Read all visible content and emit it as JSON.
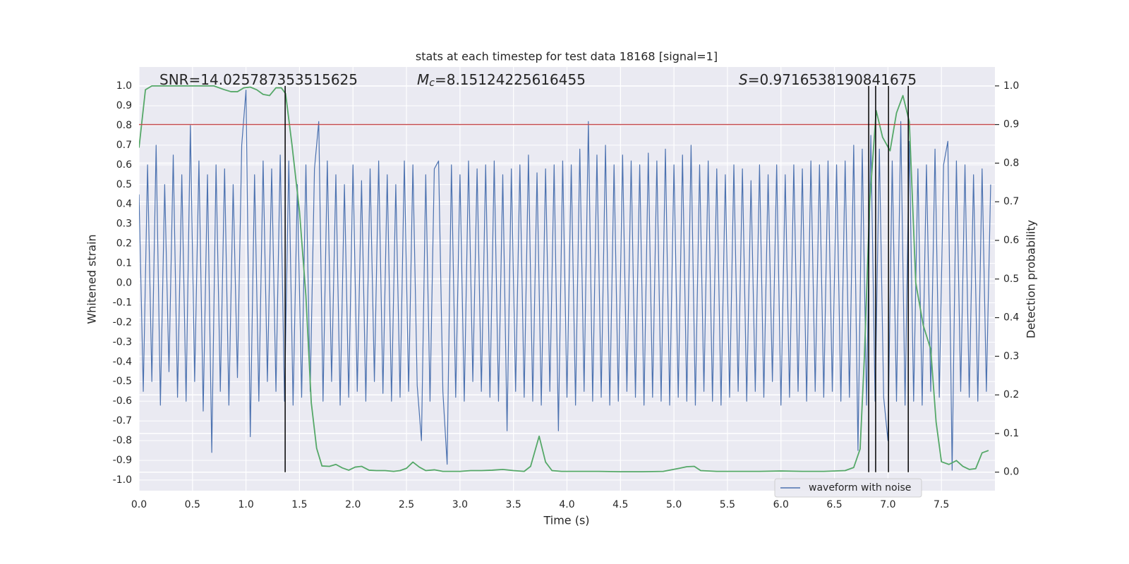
{
  "chart_data": {
    "type": "line",
    "title": "stats at each timestep for test data 18168 [signal=1]",
    "xlabel": "Time (s)",
    "ylabel": "Whitened strain",
    "y2label": "Detection probability",
    "annotations": [
      {
        "text": "SNR=14.025787353515625"
      },
      {
        "symbol": "M",
        "subscript": "c",
        "text": "=8.15124225616455"
      },
      {
        "symbol": "S",
        "text": "=0.9716538190841675"
      }
    ],
    "xlim": [
      0,
      8
    ],
    "ylim": [
      -1.054,
      1.097
    ],
    "y2lim": [
      -0.048,
      1.049
    ],
    "xticks": [
      {
        "value": 0,
        "label": "0.0"
      },
      0.5,
      {
        "value": 1,
        "label": "1.0"
      },
      1.5,
      {
        "value": 2,
        "label": "2.0"
      },
      2.5,
      {
        "value": 3,
        "label": "3.0"
      },
      3.5,
      {
        "value": 4,
        "label": "4.0"
      },
      4.5,
      {
        "value": 5,
        "label": "5.0"
      },
      5.5,
      {
        "value": 6,
        "label": "6.0"
      },
      6.5,
      {
        "value": 7,
        "label": "7.0"
      },
      7.5
    ],
    "yticks": [
      {
        "value": -1,
        "label": "-1.0"
      },
      -0.9,
      -0.8,
      -0.7,
      -0.6,
      -0.5,
      -0.4,
      -0.3,
      -0.2,
      -0.1,
      {
        "value": 0,
        "label": "0.0"
      },
      0.1,
      0.2,
      0.3,
      0.4,
      0.5,
      0.6,
      0.7,
      0.8,
      0.9,
      {
        "value": 1,
        "label": "1.0"
      }
    ],
    "y2ticks": [
      {
        "value": 0,
        "label": "0.0"
      },
      0.1,
      0.2,
      0.3,
      0.4,
      0.5,
      0.6,
      0.7,
      0.8,
      0.9,
      {
        "value": 1,
        "label": "1.0"
      }
    ],
    "grid": true,
    "background": "#eaeaf2",
    "series": [
      {
        "name": "waveform with noise",
        "color": "#4c72b0",
        "x": [
          0,
          0.04,
          0.08,
          0.12,
          0.16,
          0.2,
          0.24,
          0.28,
          0.32,
          0.36,
          0.4,
          0.44,
          0.48,
          0.52,
          0.56,
          0.6,
          0.64,
          0.68,
          0.72,
          0.76,
          0.8,
          0.84,
          0.88,
          0.92,
          0.96,
          1,
          1.04,
          1.08,
          1.12,
          1.16,
          1.2,
          1.24,
          1.28,
          1.32,
          1.36,
          1.4,
          1.44,
          1.48,
          1.52,
          1.56,
          1.6,
          1.64,
          1.68,
          1.72,
          1.76,
          1.8,
          1.84,
          1.88,
          1.92,
          1.96,
          2,
          2.04,
          2.08,
          2.12,
          2.16,
          2.2,
          2.24,
          2.28,
          2.32,
          2.36,
          2.4,
          2.44,
          2.48,
          2.52,
          2.56,
          2.6,
          2.64,
          2.68,
          2.72,
          2.76,
          2.8,
          2.84,
          2.88,
          2.92,
          2.96,
          3,
          3.04,
          3.08,
          3.12,
          3.16,
          3.2,
          3.24,
          3.28,
          3.32,
          3.36,
          3.4,
          3.44,
          3.48,
          3.52,
          3.56,
          3.6,
          3.64,
          3.68,
          3.72,
          3.76,
          3.8,
          3.84,
          3.88,
          3.92,
          3.96,
          4,
          4.04,
          4.08,
          4.12,
          4.16,
          4.2,
          4.24,
          4.28,
          4.32,
          4.36,
          4.4,
          4.44,
          4.48,
          4.52,
          4.56,
          4.6,
          4.64,
          4.68,
          4.72,
          4.76,
          4.8,
          4.84,
          4.88,
          4.92,
          4.96,
          5,
          5.04,
          5.08,
          5.12,
          5.16,
          5.2,
          5.24,
          5.28,
          5.32,
          5.36,
          5.4,
          5.44,
          5.48,
          5.52,
          5.56,
          5.6,
          5.64,
          5.68,
          5.72,
          5.76,
          5.8,
          5.84,
          5.88,
          5.92,
          5.96,
          6,
          6.04,
          6.08,
          6.12,
          6.16,
          6.2,
          6.24,
          6.28,
          6.32,
          6.36,
          6.4,
          6.44,
          6.48,
          6.52,
          6.56,
          6.6,
          6.64,
          6.68,
          6.72,
          6.76,
          6.8,
          6.84,
          6.88,
          6.92,
          6.96,
          7,
          7.04,
          7.08,
          7.12,
          7.16,
          7.2,
          7.24,
          7.28,
          7.32,
          7.36,
          7.4,
          7.44,
          7.48,
          7.52,
          7.56,
          7.6,
          7.64,
          7.68,
          7.72,
          7.76,
          7.8,
          7.84,
          7.88,
          7.92,
          7.96
        ],
        "values": [
          0.45,
          -0.55,
          0.6,
          -0.5,
          0.7,
          -0.62,
          0.5,
          -0.45,
          0.65,
          -0.58,
          0.55,
          -0.6,
          0.8,
          -0.5,
          0.62,
          -0.65,
          0.55,
          -0.86,
          0.6,
          -0.55,
          0.58,
          -0.62,
          0.5,
          -0.48,
          0.7,
          0.98,
          -0.78,
          0.55,
          -0.6,
          0.62,
          -0.5,
          0.58,
          -0.55,
          0.65,
          -0.6,
          0.62,
          -0.62,
          0.5,
          -0.58,
          0.6,
          -0.55,
          0.58,
          0.82,
          -0.6,
          0.62,
          -0.5,
          0.55,
          -0.62,
          0.5,
          -0.58,
          0.6,
          -0.55,
          0.52,
          -0.6,
          0.58,
          -0.5,
          0.62,
          -0.56,
          0.55,
          -0.6,
          0.5,
          -0.58,
          0.62,
          -0.55,
          0.6,
          -0.52,
          -0.8,
          0.55,
          -0.6,
          0.58,
          0.62,
          -0.55,
          -0.92,
          0.6,
          -0.58,
          0.55,
          -0.6,
          0.62,
          -0.5,
          0.58,
          -0.55,
          0.6,
          -0.58,
          0.62,
          -0.6,
          0.55,
          -0.75,
          0.58,
          -0.55,
          0.6,
          -0.58,
          0.65,
          -0.6,
          0.56,
          -0.62,
          0.58,
          -0.55,
          0.6,
          -0.75,
          0.62,
          -0.58,
          0.6,
          -0.62,
          0.68,
          -0.55,
          0.82,
          -0.6,
          0.65,
          -0.58,
          0.7,
          -0.62,
          0.6,
          -0.6,
          0.65,
          -0.55,
          0.62,
          -0.58,
          0.6,
          -0.62,
          0.66,
          -0.58,
          0.62,
          -0.6,
          0.68,
          -0.62,
          0.6,
          -0.58,
          0.65,
          -0.6,
          0.7,
          -0.62,
          0.6,
          -0.55,
          0.62,
          -0.6,
          0.58,
          -0.62,
          0.55,
          -0.58,
          0.6,
          -0.55,
          0.58,
          -0.6,
          0.52,
          -0.55,
          0.6,
          -0.58,
          0.55,
          -0.5,
          0.6,
          -0.62,
          0.55,
          -0.58,
          0.6,
          -0.55,
          0.58,
          -0.6,
          0.62,
          -0.55,
          0.6,
          -0.58,
          0.62,
          -0.55,
          0.6,
          -0.6,
          0.62,
          -0.58,
          0.7,
          -0.85,
          0.68,
          -0.62,
          0.75,
          -0.6,
          0.68,
          -0.58,
          -0.8,
          0.62,
          -0.6,
          0.82,
          -0.62,
          0.72,
          -0.6,
          0.58,
          -0.62,
          0.6,
          -0.55,
          0.68,
          -0.58,
          0.6,
          0.72,
          -0.95,
          0.62,
          -0.55,
          0.6,
          -0.58,
          0.55,
          -0.6,
          0.58,
          -0.55,
          0.5
        ]
      },
      {
        "color": "#55a868",
        "axis": "y2",
        "x": [
          0,
          0.06,
          0.12,
          0.2,
          0.3,
          0.4,
          0.5,
          0.6,
          0.7,
          0.8,
          0.86,
          0.92,
          0.98,
          1.04,
          1.1,
          1.16,
          1.22,
          1.28,
          1.33,
          1.37,
          1.43,
          1.5,
          1.56,
          1.61,
          1.66,
          1.71,
          1.78,
          1.84,
          1.9,
          1.96,
          2.02,
          2.08,
          2.15,
          2.22,
          2.3,
          2.38,
          2.44,
          2.5,
          2.56,
          2.62,
          2.68,
          2.76,
          2.84,
          2.92,
          3.0,
          3.1,
          3.2,
          3.3,
          3.4,
          3.5,
          3.6,
          3.66,
          3.74,
          3.8,
          3.86,
          3.95,
          4.1,
          4.3,
          4.5,
          4.7,
          4.9,
          5.05,
          5.12,
          5.19,
          5.25,
          5.4,
          5.6,
          5.8,
          6.0,
          6.2,
          6.4,
          6.6,
          6.68,
          6.74,
          6.78,
          6.83,
          6.89,
          6.95,
          7.02,
          7.08,
          7.14,
          7.2,
          7.26,
          7.33,
          7.4,
          7.45,
          7.5,
          7.57,
          7.64,
          7.7,
          7.76,
          7.82,
          7.88,
          7.94
        ],
        "values": [
          0.84,
          0.99,
          1.0,
          1.0,
          1.0,
          1.0,
          1.0,
          1.0,
          1.0,
          0.99,
          0.985,
          0.985,
          0.995,
          0.997,
          0.99,
          0.978,
          0.975,
          0.995,
          0.995,
          0.98,
          0.847,
          0.675,
          0.456,
          0.18,
          0.062,
          0.016,
          0.015,
          0.02,
          0.011,
          0.005,
          0.013,
          0.015,
          0.005,
          0.004,
          0.004,
          0.002,
          0.004,
          0.01,
          0.026,
          0.013,
          0.004,
          0.006,
          0.002,
          0.002,
          0.002,
          0.004,
          0.004,
          0.005,
          0.007,
          0.004,
          0.002,
          0.015,
          0.093,
          0.026,
          0.004,
          0.002,
          0.002,
          0.002,
          0.001,
          0.001,
          0.002,
          0.01,
          0.014,
          0.015,
          0.004,
          0.002,
          0.002,
          0.002,
          0.003,
          0.002,
          0.002,
          0.004,
          0.012,
          0.06,
          0.3,
          0.7,
          0.936,
          0.867,
          0.832,
          0.93,
          0.975,
          0.907,
          0.49,
          0.38,
          0.318,
          0.13,
          0.027,
          0.02,
          0.03,
          0.015,
          0.007,
          0.009,
          0.05,
          0.056
        ]
      }
    ],
    "hlines": [
      {
        "value": 0.9,
        "axis": "y2",
        "color": "#c44e52"
      }
    ],
    "vlines": {
      "x": [
        1.366,
        6.82,
        6.885,
        7.005,
        7.19
      ],
      "ymin": 0,
      "ymax": 1,
      "axis": "y2",
      "color": "#000000"
    }
  }
}
